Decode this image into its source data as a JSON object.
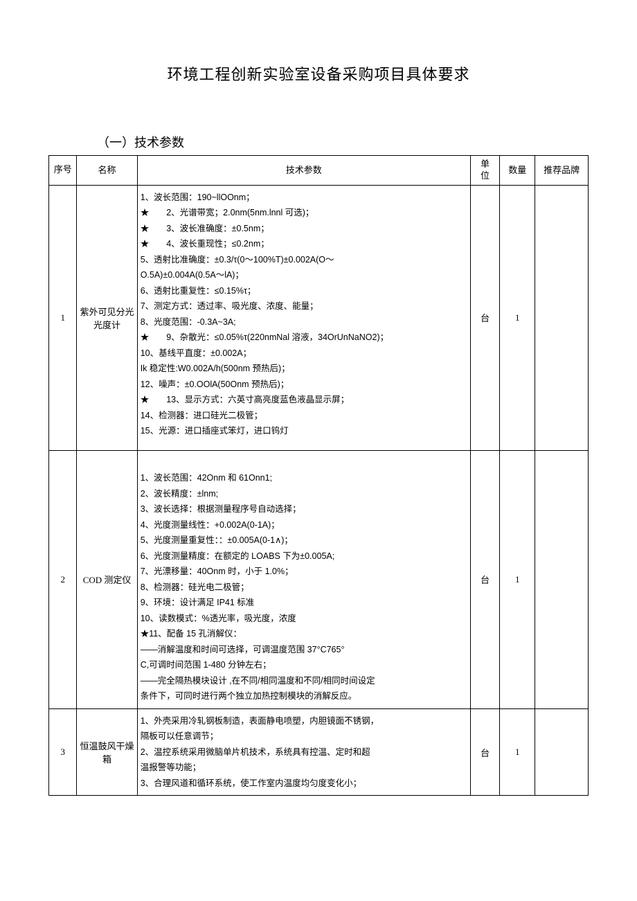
{
  "title": "环境工程创新实验室设备采购项目具体要求",
  "subtitle": "（一）技术参数",
  "columns": {
    "seq": "序号",
    "name": "名称",
    "spec": "技术参数",
    "unit_top": "单",
    "unit_bottom": "位",
    "qty": "数量",
    "brand": "推荐品牌"
  },
  "rows": [
    {
      "seq": "1",
      "name": "紫外可见分光光度计",
      "unit": "台",
      "qty": "1",
      "brand": "",
      "spec_lines": [
        "1、波长范围：190~llOOnm；",
        "★　　2、光谱带宽；2.0nm(5nm.lnnl 可选)；",
        "★　　3、波长准确度：±0.5nm；",
        "★　　4、波长重现性；≤0.2nm；",
        "5、透射比准确度：±0.3/τ(0～100%T)±0.002A(O～",
        "O.5A)±0.004A(0.5A～lA)；",
        "6、透射比重复性：≤0.15%τ；",
        "7、测定方式：透过率、吸光度、浓度、能量；",
        "8、光度范围：-0.3A~3A;",
        "★　　9、杂散光：≤0.05%τ(220nmNal 溶液，34OrUnNaNO2)；",
        "10、基线平直度：±0.002A；",
        "Ik 稳定性:W0.002A/h(500nm 预热后)；",
        "12、噪声：±0.OOlA(50Onm 预热后)；",
        "★　　13、显示方式：六英寸高亮度蓝色液晶显示屏；",
        "14、检测器：进口硅光二极管；",
        "15、光源：进口插座式笨灯，进口钨灯"
      ]
    },
    {
      "seq": "2",
      "name": "COD 测定仪",
      "unit": "台",
      "qty": "1",
      "brand": "",
      "spec_lines": [
        "　",
        "1、波长范围：42Onm 和 61Onn1;",
        "2、波长精度：±lnm;",
        "3、波长选择：根据测量程序号自动选择；",
        "4、光度测量线性：+0.002A(0-1A)；",
        "5、光度测量重复性：：±0.005A(0-1∧)；",
        "6、光度测量精度：在额定的 LOABS 下为±0.005A;",
        "7、光漂移量：40Onm 时，小于 1.0%；",
        "8、检测器：硅光电二极管；",
        "9、环境：设计满足 IP41 标准",
        "10、读数模式：%透光率，吸光度，浓度",
        "★11、配备 15 孔消解仪：",
        "——消解温度和时间可选择，可调温度范围 37°C765°",
        "C,可调时间范围 1-480 分钟左右；",
        "——完全隔热模块设计 ,在不同/相同温度和不同/相同时间设定",
        "条件下，可同时进行两个独立加热控制模块的消解反应。"
      ]
    },
    {
      "seq": "3",
      "name": "恒温鼓风干燥箱",
      "unit": "台",
      "qty": "1",
      "brand": "",
      "spec_lines": [
        "1、外壳采用冷轧钢板制造，表面静电喷塑，内胆镜面不锈钢，",
        "隔板可以任意调节；",
        "2、温控系统采用微脑单片机技术，系统具有控温、定时和超",
        "温报警等功能；",
        "3、合理风道和循环系统，使工作室内温度均匀度变化小；"
      ]
    }
  ]
}
